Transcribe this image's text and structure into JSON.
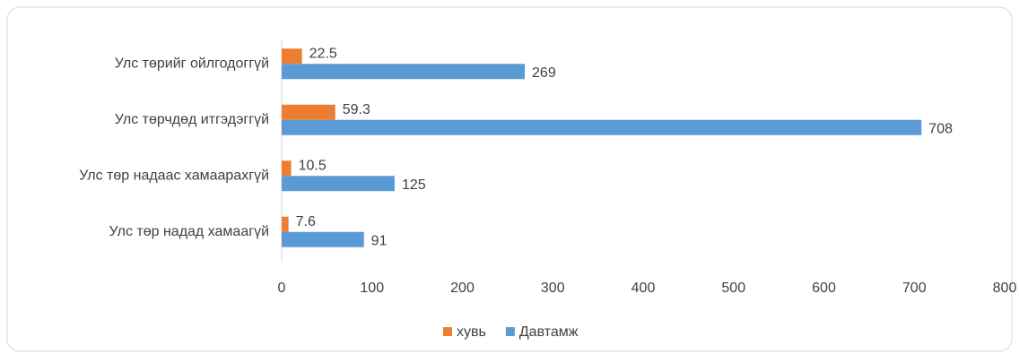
{
  "chart_data": {
    "type": "bar",
    "orientation": "horizontal",
    "categories": [
      "Улс төрийг ойлгодоггүй",
      "Улс төрчдөд итгэдэггүй",
      "Улс төр надаас хамаарахгүй",
      "Улс төр надад хамаагүй"
    ],
    "series": [
      {
        "name": "хувь",
        "color": "#ED7D31",
        "values": [
          22.5,
          59.3,
          10.5,
          7.6
        ]
      },
      {
        "name": "Давтамж",
        "color": "#5B9BD5",
        "values": [
          269,
          708,
          125,
          91
        ]
      }
    ],
    "xlim": [
      0,
      800
    ],
    "xticks": [
      0,
      100,
      200,
      300,
      400,
      500,
      600,
      700,
      800
    ],
    "grid": false,
    "legend": "bottom"
  }
}
